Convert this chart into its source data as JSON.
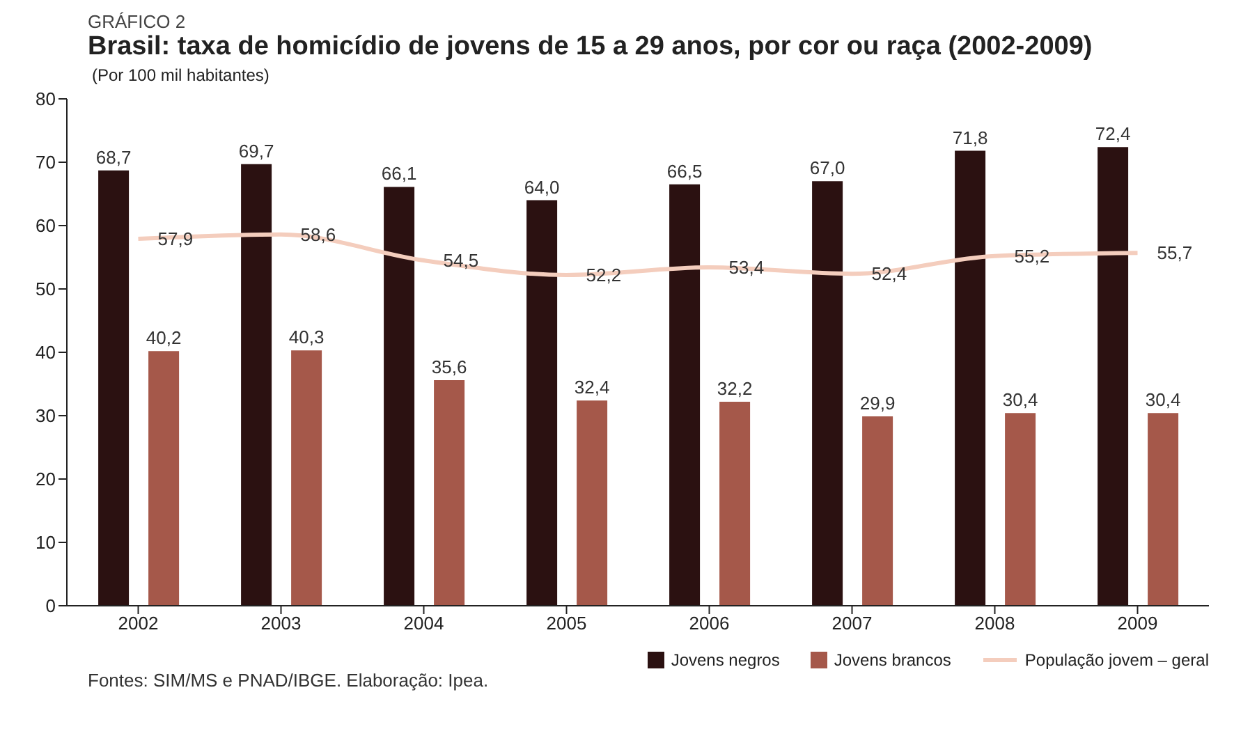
{
  "chart_data": {
    "type": "bar",
    "title": "Brasil: taxa de homicídio de jovens de 15 a 29 anos, por cor ou raça (2002-2009)",
    "subtitle": "(Por 100 mil habitantes)",
    "annotations": [
      "GRÁFICO 2",
      "Fontes: SIM/MS e PNAD/IBGE. Elaboração: Ipea."
    ],
    "categories": [
      "2002",
      "2003",
      "2004",
      "2005",
      "2006",
      "2007",
      "2008",
      "2009"
    ],
    "series": [
      {
        "name": "Jovens negros",
        "color": "#2b1111",
        "values": [
          68.7,
          69.7,
          66.1,
          64.0,
          66.5,
          67.0,
          71.8,
          72.4
        ],
        "value_labels": [
          "68,7",
          "69,7",
          "66,1",
          "64,0",
          "66,5",
          "67,0",
          "71,8",
          "72,4"
        ]
      },
      {
        "name": "Jovens brancos",
        "color": "#a5584a",
        "values": [
          40.2,
          40.3,
          35.6,
          32.4,
          32.2,
          29.9,
          30.4,
          30.4
        ],
        "value_labels": [
          "40,2",
          "40,3",
          "35,6",
          "32,4",
          "32,2",
          "29,9",
          "30,4",
          "30,4"
        ]
      },
      {
        "name": "População jovem – geral",
        "type": "line",
        "color": "#f4cdbd",
        "values": [
          57.9,
          58.6,
          54.5,
          52.2,
          53.4,
          52.4,
          55.2,
          55.7
        ],
        "value_labels": [
          "57,9",
          "58,6",
          "54,5",
          "52,2",
          "53,4",
          "52,4",
          "55,2",
          "55,7"
        ]
      }
    ],
    "ylim": [
      0,
      80
    ],
    "yticks": [
      0,
      10,
      20,
      30,
      40,
      50,
      60,
      70,
      80
    ],
    "legend": "bottom right",
    "marker": "none",
    "line_style": "solid"
  }
}
